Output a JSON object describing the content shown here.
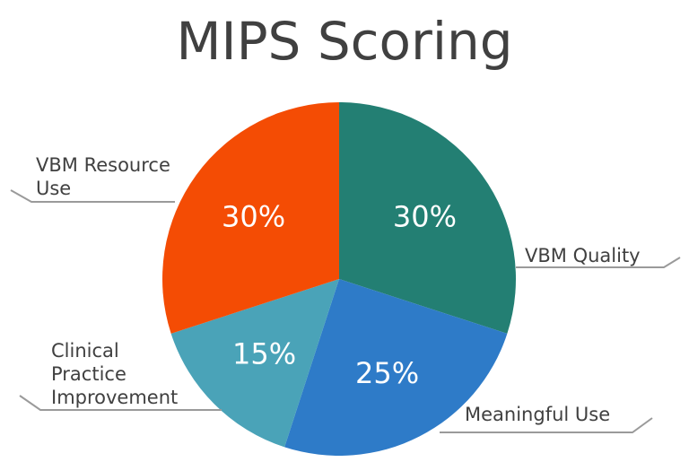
{
  "chart_data": {
    "type": "pie",
    "title": "MIPS Scoring",
    "slices": [
      {
        "label": "VBM Quality",
        "label_lines": [
          "VBM Quality"
        ],
        "value": 30,
        "value_label": "30%",
        "color": "#237f73"
      },
      {
        "label": "Meaningful Use",
        "label_lines": [
          "Meaningful Use"
        ],
        "value": 25,
        "value_label": "25%",
        "color": "#2e7bc8"
      },
      {
        "label": "Clinical Practice Improvement",
        "label_lines": [
          "Clinical",
          "Practice",
          "Improvement"
        ],
        "value": 15,
        "value_label": "15%",
        "color": "#4aa3b8"
      },
      {
        "label": "VBM Resource Use",
        "label_lines": [
          "VBM Resource",
          "Use"
        ],
        "value": 30,
        "value_label": "30%",
        "color": "#f44c04"
      }
    ],
    "start": "top",
    "direction": "clockwise",
    "legend": "none",
    "label_placement": "outside callouts with leader lines"
  }
}
